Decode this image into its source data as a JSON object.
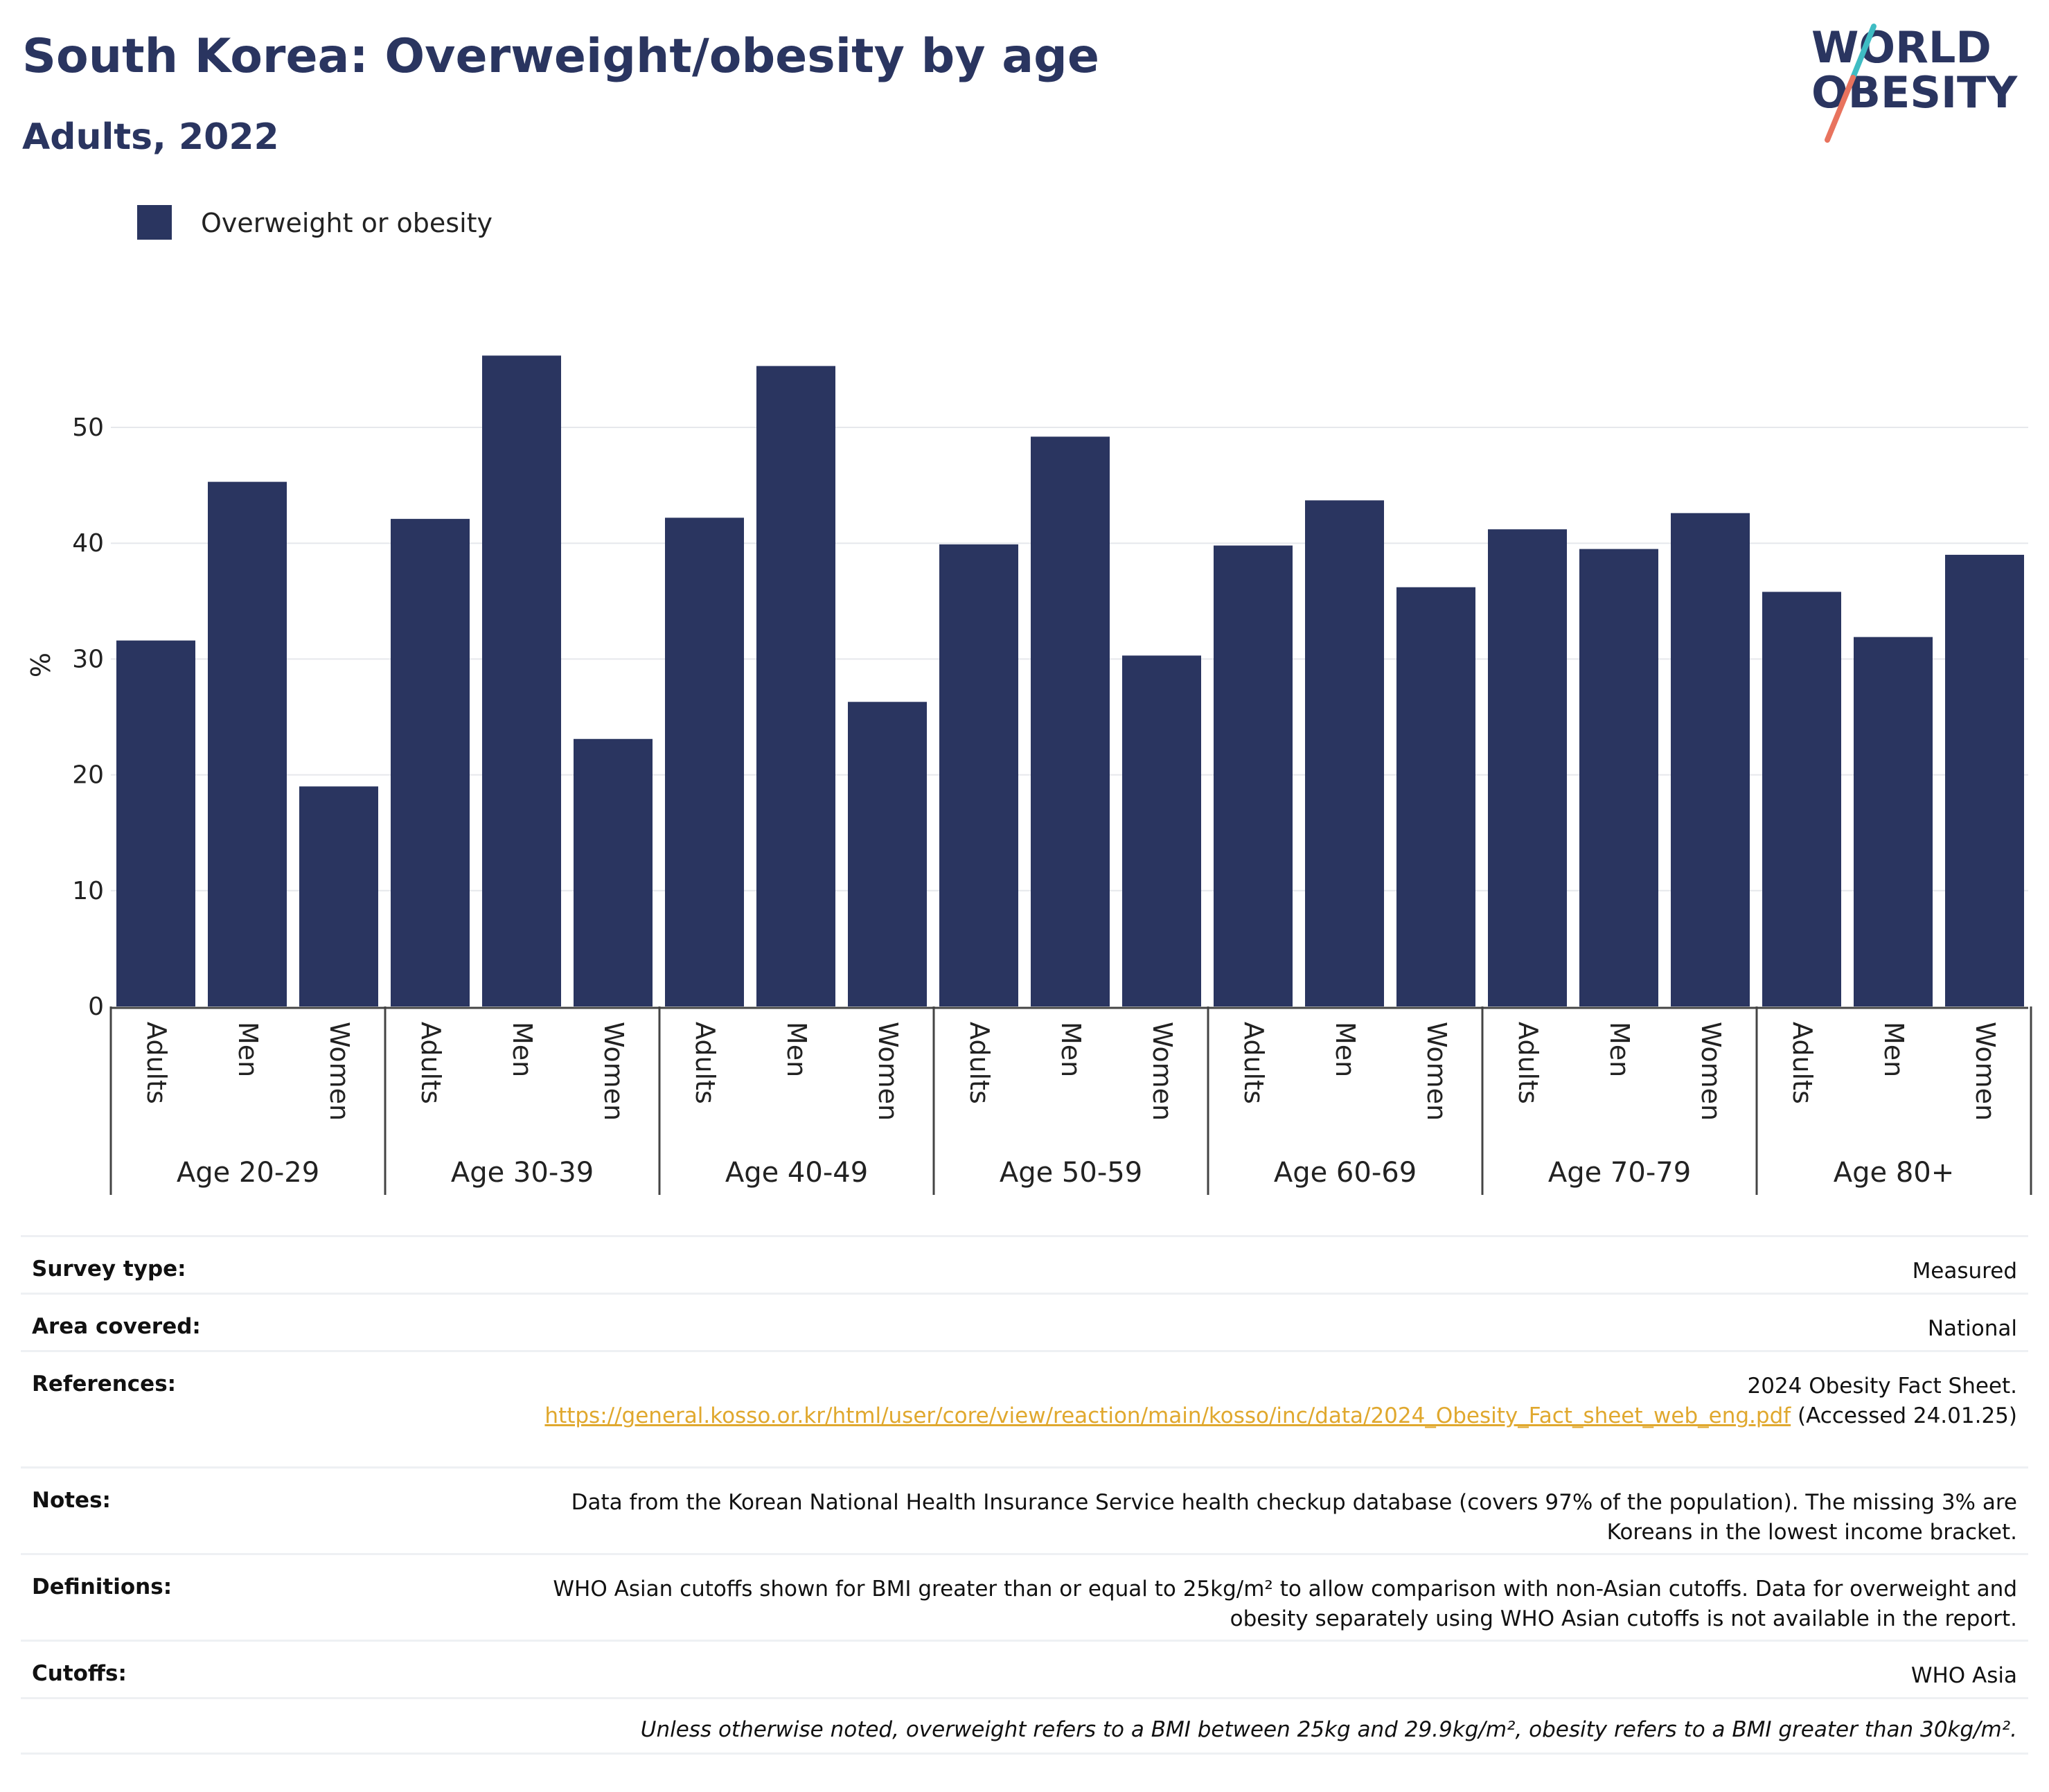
{
  "header": {
    "title": "South Korea: Overweight/obesity by age",
    "subtitle": "Adults, 2022",
    "logo_line1": "WORLD",
    "logo_line2": "OBESITY"
  },
  "colors": {
    "bar": "#2a3560",
    "title": "#2a3560",
    "link": "#e0a82e",
    "logo_teal": "#3fbcc3",
    "logo_coral": "#e8735e"
  },
  "chart_data": {
    "type": "bar",
    "title": "South Korea: Overweight/obesity by age",
    "subtitle": "Adults, 2022",
    "ylabel": "%",
    "ylim": [
      0,
      60
    ],
    "yticks": [
      0,
      10,
      20,
      30,
      40,
      50
    ],
    "grid": true,
    "legend_position": "top-left",
    "groups": [
      "Age 20-29",
      "Age 30-39",
      "Age 40-49",
      "Age 50-59",
      "Age 60-69",
      "Age 70-79",
      "Age 80+"
    ],
    "subcategories": [
      "Adults",
      "Men",
      "Women"
    ],
    "series": [
      {
        "name": "Overweight or obesity",
        "values": [
          31.6,
          45.3,
          19.0,
          42.1,
          56.2,
          23.1,
          42.2,
          55.3,
          26.3,
          39.9,
          49.2,
          30.3,
          39.8,
          43.7,
          36.2,
          41.2,
          39.5,
          42.6,
          35.8,
          31.9,
          39.0
        ]
      }
    ]
  },
  "info": {
    "survey_type": {
      "label": "Survey type:",
      "value": "Measured"
    },
    "area_covered": {
      "label": "Area covered:",
      "value": "National"
    },
    "references": {
      "label": "References:",
      "text_before": "2024 Obesity Fact Sheet.",
      "link": "https://general.kosso.or.kr/html/user/core/view/reaction/main/kosso/inc/data/2024_Obesity_Fact_sheet_web_eng.pdf",
      "text_after": "(Accessed 24.01.25)"
    },
    "notes": {
      "label": "Notes:",
      "value": "Data from the Korean National Health Insurance Service health checkup database (covers 97% of the population). The missing 3% are Koreans in the lowest income bracket."
    },
    "definitions": {
      "label": "Definitions:",
      "value": "WHO Asian cutoffs shown for BMI greater than or equal to 25kg/m² to allow comparison with non-Asian cutoffs. Data for overweight and obesity separately using WHO Asian cutoffs is not available in the report."
    },
    "cutoffs": {
      "label": "Cutoffs:",
      "value": "WHO Asia"
    },
    "footnote": "Unless otherwise noted, overweight refers to a BMI between 25kg and 29.9kg/m², obesity refers to a BMI greater than 30kg/m²."
  }
}
